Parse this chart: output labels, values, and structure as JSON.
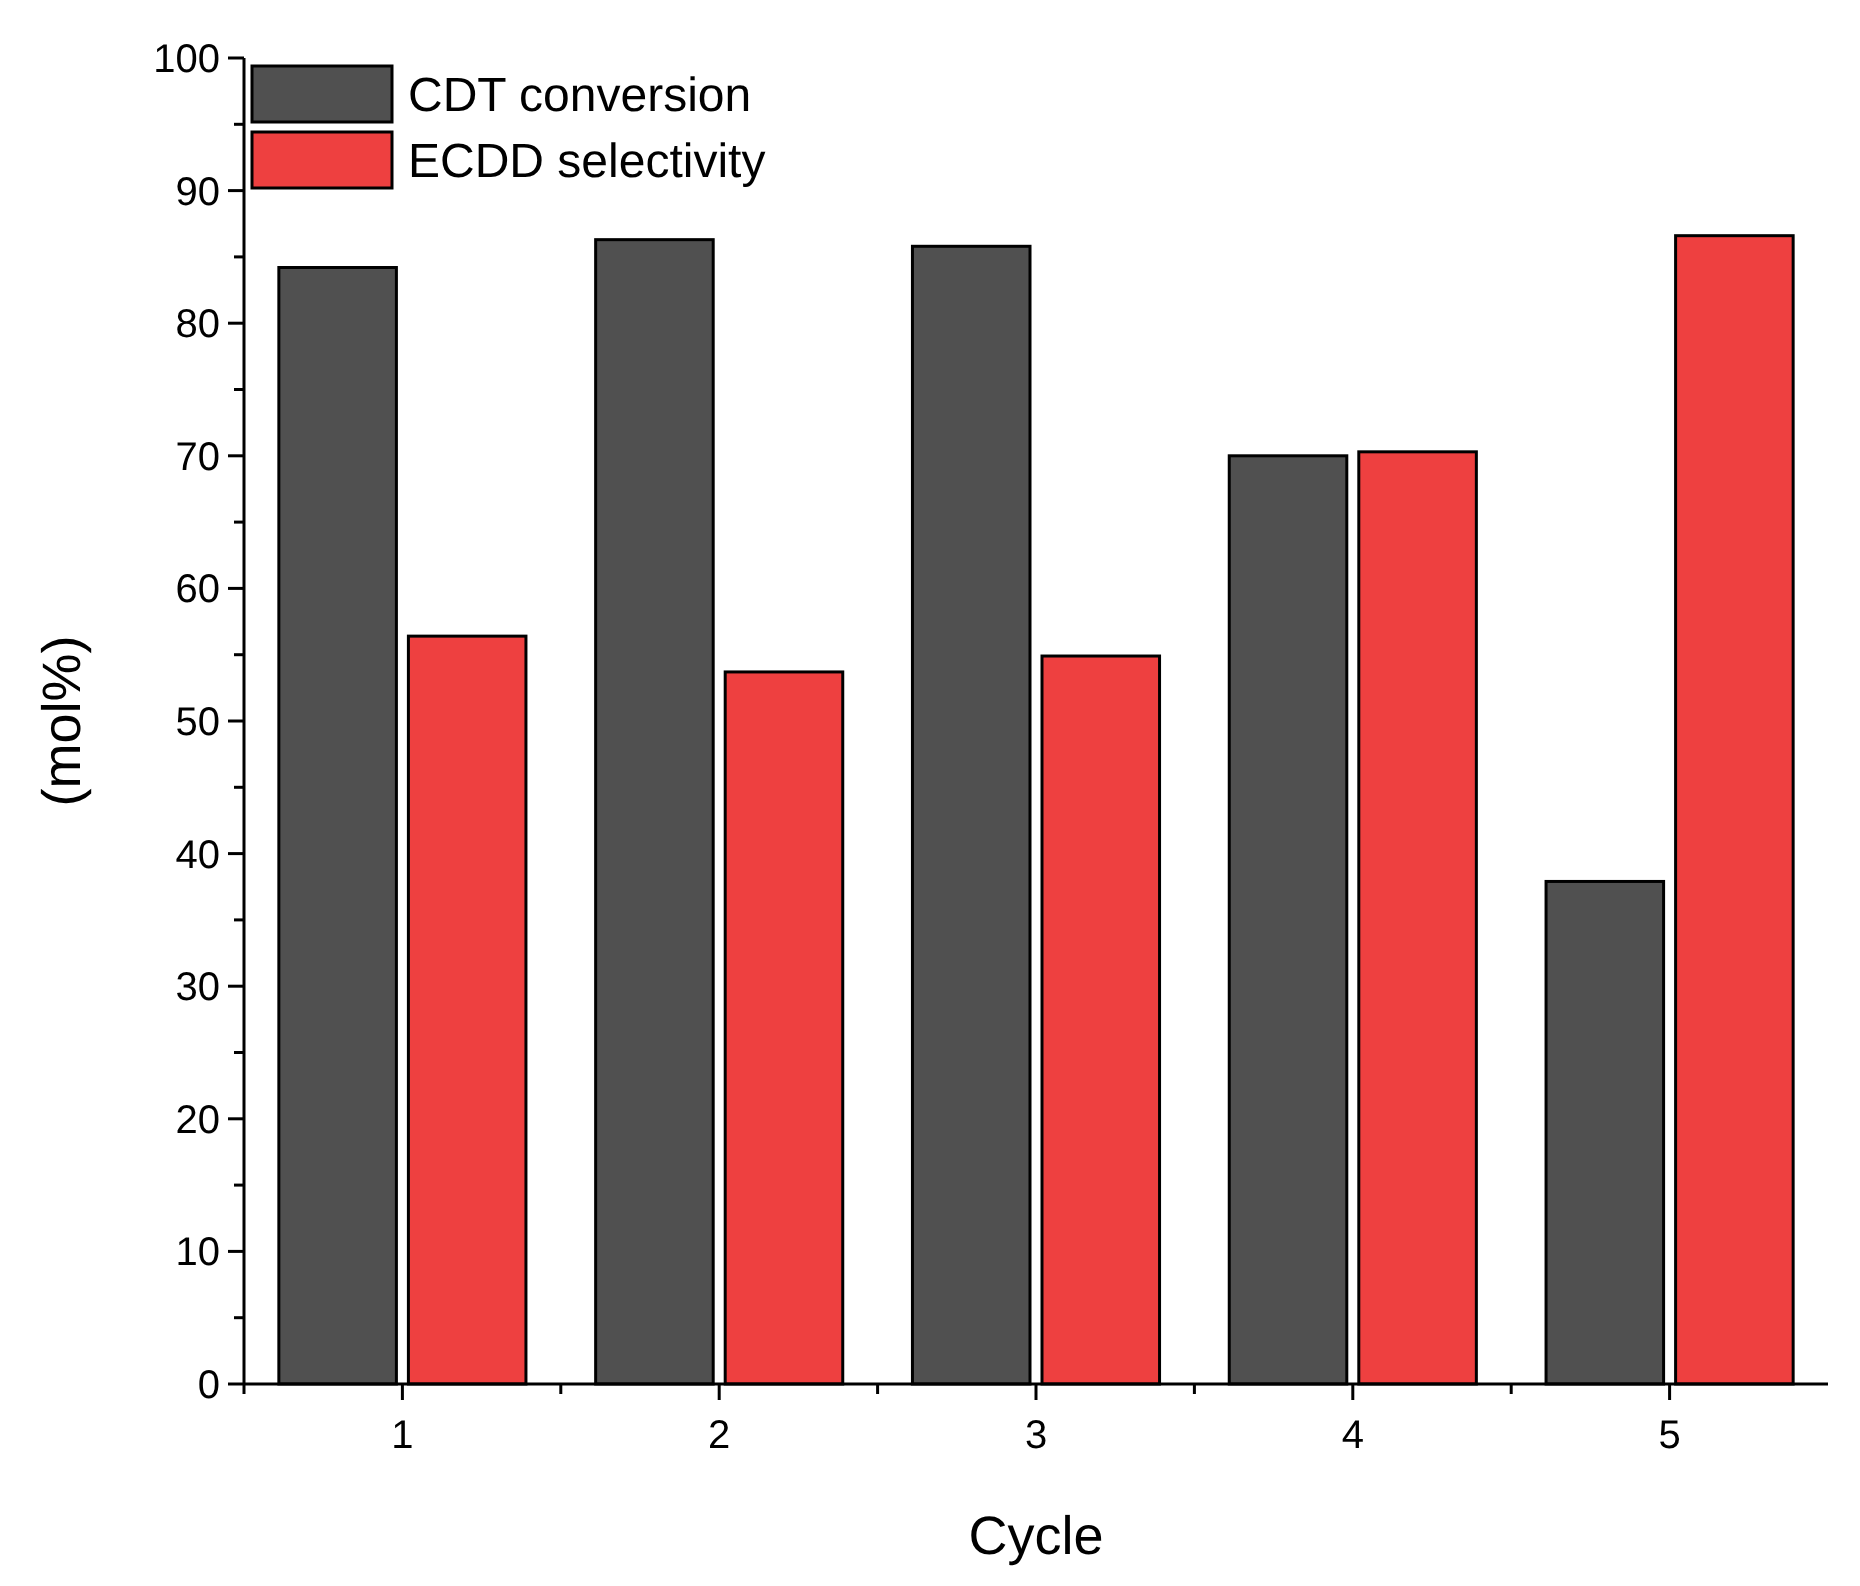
{
  "chart_data": {
    "type": "bar",
    "xlabel": "Cycle",
    "ylabel": "(mol%)",
    "categories": [
      "1",
      "2",
      "3",
      "4",
      "5"
    ],
    "series": [
      {
        "name": "CDT conversion",
        "color": "#505050",
        "values": [
          84.2,
          86.3,
          85.8,
          70.0,
          37.9
        ]
      },
      {
        "name": "ECDD selectivity",
        "color": "#ee4040",
        "values": [
          56.4,
          53.7,
          54.9,
          70.3,
          86.6
        ]
      }
    ],
    "ylim": [
      0,
      100
    ],
    "yticks": [
      0,
      {
        "value": 5,
        "label": null
      },
      10,
      {
        "value": 15,
        "label": null
      },
      20,
      {
        "value": 25,
        "label": null
      },
      30,
      {
        "value": 35,
        "label": null
      },
      40,
      {
        "value": 45,
        "label": null
      },
      50,
      {
        "value": 55,
        "label": null
      },
      60,
      {
        "value": 65,
        "label": null
      },
      70,
      {
        "value": 75,
        "label": null
      },
      80,
      {
        "value": 85,
        "label": null
      },
      90,
      {
        "value": 95,
        "label": null
      },
      100
    ],
    "legend": "top left",
    "grid": false
  }
}
